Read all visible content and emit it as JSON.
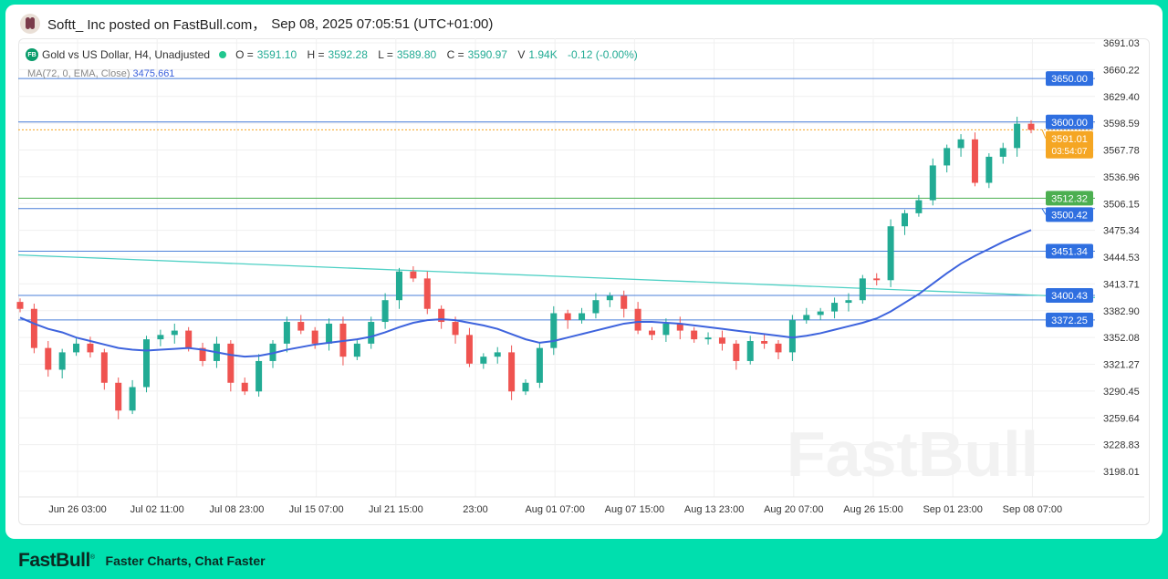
{
  "post": {
    "author": "Softt_ Inc",
    "text": "Softt_ Inc posted on FastBull.com，",
    "timestamp": "Sep 08, 2025 07:05:51 (UTC+01:00)"
  },
  "legend": {
    "symbol_badge": "FB",
    "title": "Gold vs US Dollar, H4, Unadjusted",
    "o_label": "O =",
    "o": "3591.10",
    "h_label": "H =",
    "h": "3592.28",
    "l_label": "L =",
    "l": "3589.80",
    "c_label": "C =",
    "c": "3590.97",
    "v_label": "V",
    "v": "1.94K",
    "change": "-0.12 (-0.00%)"
  },
  "indicator": {
    "label": "MA(72, 0, EMA, Close)",
    "value": "3475.661"
  },
  "footer": {
    "logo": "FastBull",
    "tagline": "Faster Charts, Chat Faster"
  },
  "watermark": "FastBull",
  "colors": {
    "up": "#22ab94",
    "down": "#ef5350",
    "ma": "#3d63dd",
    "hline": "#4a7fd9",
    "trend": "#4dd0c4",
    "green_line": "#4caf50",
    "current": "#f5a623",
    "frame": "#00dfae"
  },
  "chart_data": {
    "type": "candlestick",
    "ylim": [
      3170,
      3705
    ],
    "grid": true,
    "y_ticks": [
      "3691.03",
      "3660.22",
      "3629.40",
      "3598.59",
      "3567.78",
      "3536.96",
      "3506.15",
      "3475.34",
      "3444.53",
      "3413.71",
      "3382.90",
      "3352.08",
      "3321.27",
      "3290.45",
      "3259.64",
      "3228.83",
      "3198.01"
    ],
    "x_ticks": [
      "Jun 26 03:00",
      "Jul 02 11:00",
      "Jul 08 23:00",
      "Jul 15 07:00",
      "Jul 21 15:00",
      "23:00",
      "Aug 01 07:00",
      "Aug 07 15:00",
      "Aug 13 23:00",
      "Aug 20 07:00",
      "Aug 26 15:00",
      "Sep 01 23:00",
      "Sep 08 07:00"
    ],
    "closes": [
      3385,
      3340,
      3315,
      3335,
      3345,
      3335,
      3300,
      3268,
      3295,
      3350,
      3355,
      3360,
      3340,
      3325,
      3345,
      3300,
      3290,
      3325,
      3345,
      3370,
      3360,
      3345,
      3368,
      3330,
      3345,
      3370,
      3395,
      3428,
      3420,
      3385,
      3370,
      3355,
      3322,
      3330,
      3335,
      3290,
      3300,
      3340,
      3380,
      3372,
      3380,
      3395,
      3400,
      3385,
      3360,
      3355,
      3368,
      3360,
      3350,
      3352,
      3345,
      3325,
      3348,
      3345,
      3335,
      3372,
      3378,
      3382,
      3392,
      3395,
      3420,
      3418,
      3480,
      3495,
      3510,
      3550,
      3570,
      3580,
      3530,
      3560,
      3570,
      3598,
      3591
    ],
    "ma_series": {
      "name": "MA(72, 0, EMA, Close)",
      "values": [
        3375,
        3368,
        3362,
        3358,
        3352,
        3348,
        3344,
        3340,
        3338,
        3337,
        3338,
        3339,
        3340,
        3338,
        3335,
        3332,
        3330,
        3331,
        3334,
        3338,
        3341,
        3344,
        3346,
        3348,
        3350,
        3353,
        3358,
        3364,
        3369,
        3372,
        3373,
        3372,
        3369,
        3366,
        3362,
        3356,
        3350,
        3346,
        3348,
        3352,
        3356,
        3360,
        3364,
        3368,
        3370,
        3370,
        3369,
        3368,
        3366,
        3364,
        3362,
        3360,
        3358,
        3356,
        3354,
        3352,
        3354,
        3357,
        3361,
        3365,
        3369,
        3374,
        3382,
        3392,
        3402,
        3414,
        3426,
        3437,
        3446,
        3454,
        3462,
        3469,
        3475.66
      ]
    },
    "horizontal_lines": [
      {
        "price": 3650.0,
        "label": "3650.00",
        "kind": "hline"
      },
      {
        "price": 3600.0,
        "label": "3600.00",
        "kind": "hline"
      },
      {
        "price": 3512.32,
        "label": "3512.32",
        "kind": "green_line"
      },
      {
        "price": 3500.42,
        "label": "3500.42",
        "kind": "hline"
      },
      {
        "price": 3451.34,
        "label": "3451.34",
        "kind": "hline"
      },
      {
        "price": 3400.43,
        "label": "3400.43",
        "kind": "hline"
      },
      {
        "price": 3372.25,
        "label": "3372.25",
        "kind": "hline"
      }
    ],
    "current_price": {
      "price": 3591.01,
      "label": "3591.01",
      "countdown": "03:54:07"
    },
    "trendline": [
      [
        0,
        3447
      ],
      [
        76,
        3398
      ]
    ]
  }
}
